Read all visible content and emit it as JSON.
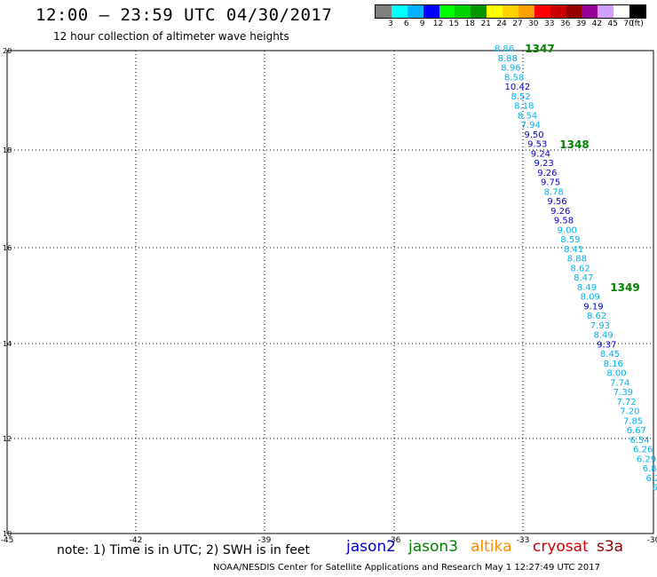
{
  "header": {
    "title": "12:00 — 23:59 UTC 04/30/2017",
    "subtitle": "12 hour collection of altimeter wave heights"
  },
  "color_scale": {
    "labels": [
      "3",
      "6",
      "9",
      "12",
      "15",
      "18",
      "21",
      "24",
      "27",
      "30",
      "33",
      "36",
      "39",
      "42",
      "45",
      "70",
      "(ft)"
    ],
    "colors": [
      "#7f7f7f",
      "#00ffff",
      "#00b2ff",
      "#0000ff",
      "#00ff00",
      "#00d200",
      "#009600",
      "#ffff00",
      "#ffd200",
      "#ffa000",
      "#ff0000",
      "#c80000",
      "#960000",
      "#960096",
      "#d2a0ff",
      "#ffffff",
      "#000000"
    ]
  },
  "map": {
    "lat_labels": [
      "20",
      "18",
      "16",
      "14",
      "12",
      "10"
    ],
    "lon_labels": [
      "-45",
      "-42",
      "-39",
      "-36",
      "-33",
      "-30"
    ],
    "orbits": [
      {
        "id": "1347",
        "color": "#008000"
      },
      {
        "id": "1348",
        "color": "#008000"
      },
      {
        "id": "1349",
        "color": "#008000"
      }
    ],
    "readings": [
      {
        "v": "8.86",
        "c": "#00b2ee"
      },
      {
        "v": "8.88",
        "c": "#00b2ee"
      },
      {
        "v": "8.96",
        "c": "#00b2ee"
      },
      {
        "v": "8.58",
        "c": "#00b2ee"
      },
      {
        "v": "10.42",
        "c": "#0000cd"
      },
      {
        "v": "8.52",
        "c": "#00b2ee"
      },
      {
        "v": "8.18",
        "c": "#00b2ee"
      },
      {
        "v": "8.54",
        "c": "#00b2ee"
      },
      {
        "v": "7.94",
        "c": "#00b2ee"
      },
      {
        "v": "9.50",
        "c": "#0000cd"
      },
      {
        "v": "9.53",
        "c": "#0000cd"
      },
      {
        "v": "9.24",
        "c": "#0000cd"
      },
      {
        "v": "9.23",
        "c": "#0000cd"
      },
      {
        "v": "9.26",
        "c": "#0000cd"
      },
      {
        "v": "9.75",
        "c": "#0000cd"
      },
      {
        "v": "8.78",
        "c": "#00b2ee"
      },
      {
        "v": "9.56",
        "c": "#0000cd"
      },
      {
        "v": "9.26",
        "c": "#0000cd"
      },
      {
        "v": "9.58",
        "c": "#0000cd"
      },
      {
        "v": "9.00",
        "c": "#00b2ee"
      },
      {
        "v": "8.59",
        "c": "#00b2ee"
      },
      {
        "v": "8.41",
        "c": "#00b2ee"
      },
      {
        "v": "8.88",
        "c": "#00b2ee"
      },
      {
        "v": "8.62",
        "c": "#00b2ee"
      },
      {
        "v": "8.47",
        "c": "#00b2ee"
      },
      {
        "v": "8.49",
        "c": "#00b2ee"
      },
      {
        "v": "8.09",
        "c": "#00b2ee"
      },
      {
        "v": "9.19",
        "c": "#0000cd"
      },
      {
        "v": "8.62",
        "c": "#00b2ee"
      },
      {
        "v": "7.93",
        "c": "#00b2ee"
      },
      {
        "v": "8.49",
        "c": "#00b2ee"
      },
      {
        "v": "9.37",
        "c": "#0000cd"
      },
      {
        "v": "8.45",
        "c": "#00b2ee"
      },
      {
        "v": "8.16",
        "c": "#00b2ee"
      },
      {
        "v": "8.00",
        "c": "#00b2ee"
      },
      {
        "v": "7.74",
        "c": "#00b2ee"
      },
      {
        "v": "7.39",
        "c": "#00b2ee"
      },
      {
        "v": "7.72",
        "c": "#00b2ee"
      },
      {
        "v": "7.20",
        "c": "#00b2ee"
      },
      {
        "v": "7.85",
        "c": "#00b2ee"
      },
      {
        "v": "6.67",
        "c": "#00b2ee"
      },
      {
        "v": "6.54",
        "c": "#00b2ee"
      },
      {
        "v": "6.26",
        "c": "#00b2ee"
      },
      {
        "v": "6.29",
        "c": "#00b2ee"
      },
      {
        "v": "6.8",
        "c": "#00b2ee"
      },
      {
        "v": "6.2",
        "c": "#00b2ee"
      },
      {
        "v": "6.",
        "c": "#00b2ee"
      },
      {
        "v": "5",
        "c": "#00b2ee"
      }
    ]
  },
  "footer": {
    "note": "note: 1) Time is in UTC; 2) SWH is in feet",
    "legend": [
      {
        "name": "jason2",
        "color": "#0000cd"
      },
      {
        "name": "jason3",
        "color": "#008000"
      },
      {
        "name": "altika",
        "color": "#ff8c00"
      },
      {
        "name": "cryosat",
        "color": "#cc0000"
      },
      {
        "name": "s3a",
        "color": "#8b0000"
      }
    ],
    "credit": "NOAA/NESDIS Center for Satellite Applications and Research   May  1 12:27:49 UTC 2017"
  }
}
